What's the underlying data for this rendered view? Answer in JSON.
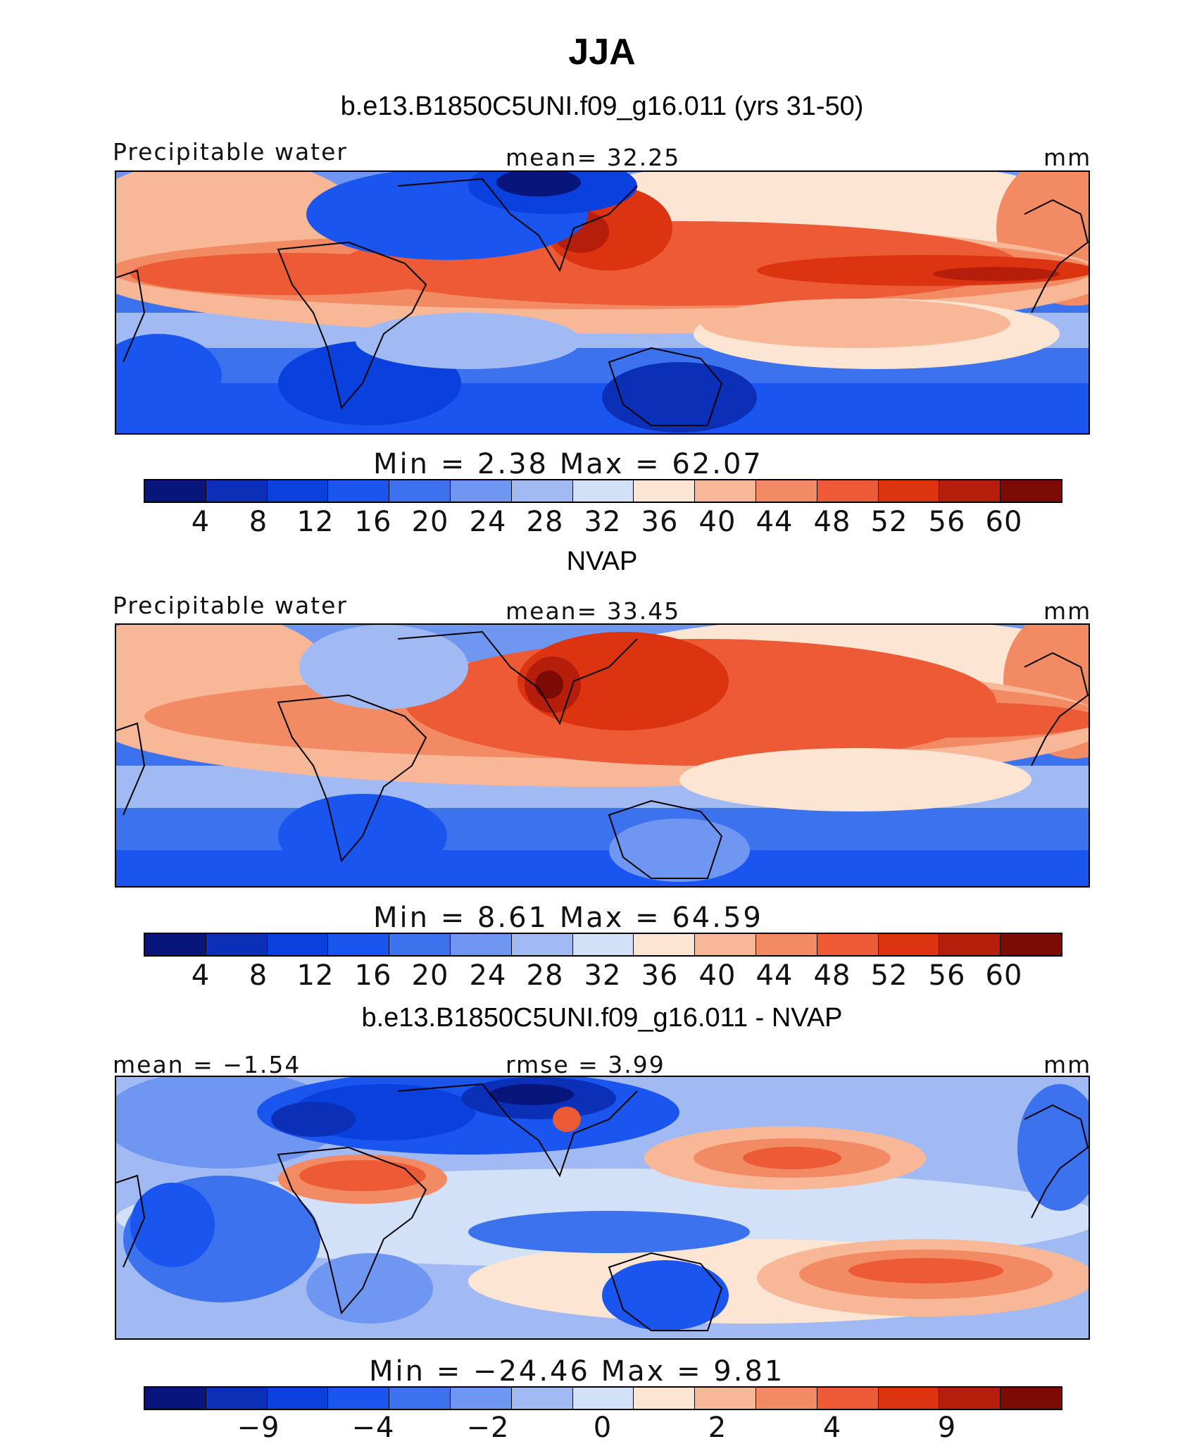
{
  "title": "JJA",
  "panels": [
    {
      "subtitle": "b.e13.B1850C5UNI.f09_g16.011 (yrs 31-50)",
      "left_label": "Precipitable water",
      "center_label": "mean=   32.25",
      "right_label": "mm",
      "minmax": "Min  =    2.38  Max  =   62.07",
      "colorbar": {
        "colors": [
          "#08157a",
          "#0c2fb8",
          "#0a40dd",
          "#1a55f0",
          "#3d72ee",
          "#6f96f0",
          "#a2baf4",
          "#d2e1f8",
          "#fde5d3",
          "#f8b897",
          "#f28a64",
          "#ec5b35",
          "#dc3410",
          "#b51e0b",
          "#7c0a05"
        ],
        "labels": [
          "4",
          "8",
          "12",
          "16",
          "20",
          "24",
          "28",
          "32",
          "36",
          "40",
          "44",
          "48",
          "52",
          "56",
          "60"
        ]
      }
    },
    {
      "subtitle": "NVAP",
      "left_label": "Precipitable water",
      "center_label": "mean=   33.45",
      "right_label": "mm",
      "minmax": "Min  =    8.61  Max  =   64.59",
      "colorbar": {
        "colors": [
          "#08157a",
          "#0c2fb8",
          "#0a40dd",
          "#1a55f0",
          "#3d72ee",
          "#6f96f0",
          "#a2baf4",
          "#d2e1f8",
          "#fde5d3",
          "#f8b897",
          "#f28a64",
          "#ec5b35",
          "#dc3410",
          "#b51e0b",
          "#7c0a05"
        ],
        "labels": [
          "4",
          "8",
          "12",
          "16",
          "20",
          "24",
          "28",
          "32",
          "36",
          "40",
          "44",
          "48",
          "52",
          "56",
          "60"
        ]
      }
    },
    {
      "subtitle": "b.e13.B1850C5UNI.f09_g16.011 - NVAP",
      "left_label": "mean  =   −1.54",
      "center_label": "rmse  =    3.99",
      "right_label": "mm",
      "minmax": "Min  =  −24.46  Max  =    9.81",
      "colorbar": {
        "colors": [
          "#08157a",
          "#0c2fb8",
          "#0a40dd",
          "#1a55f0",
          "#3d72ee",
          "#6f96f0",
          "#a2baf4",
          "#d2e1f8",
          "#fde5d3",
          "#f8b897",
          "#f28a64",
          "#ec5b35",
          "#dc3410",
          "#b51e0b",
          "#7c0a05"
        ],
        "labels": [
          "−9",
          "−4",
          "−2",
          "0",
          "2",
          "4",
          "9"
        ]
      }
    }
  ],
  "chart_data": [
    {
      "type": "heatmap",
      "title": "b.e13.B1850C5UNI.f09_g16.011 (yrs 31-50)",
      "variable": "Precipitable water",
      "units": "mm",
      "season": "JJA",
      "mean": 32.25,
      "min": 2.38,
      "max": 62.07,
      "contour_levels": [
        4,
        8,
        12,
        16,
        20,
        24,
        28,
        32,
        36,
        40,
        44,
        48,
        52,
        56,
        60
      ]
    },
    {
      "type": "heatmap",
      "title": "NVAP",
      "variable": "Precipitable water",
      "units": "mm",
      "season": "JJA",
      "mean": 33.45,
      "min": 8.61,
      "max": 64.59,
      "contour_levels": [
        4,
        8,
        12,
        16,
        20,
        24,
        28,
        32,
        36,
        40,
        44,
        48,
        52,
        56,
        60
      ]
    },
    {
      "type": "heatmap",
      "title": "b.e13.B1850C5UNI.f09_g16.011 - NVAP",
      "units": "mm",
      "season": "JJA",
      "mean": -1.54,
      "rmse": 3.99,
      "min": -24.46,
      "max": 9.81,
      "contour_levels": [
        -9,
        -4,
        -2,
        0,
        2,
        4,
        9
      ]
    }
  ]
}
